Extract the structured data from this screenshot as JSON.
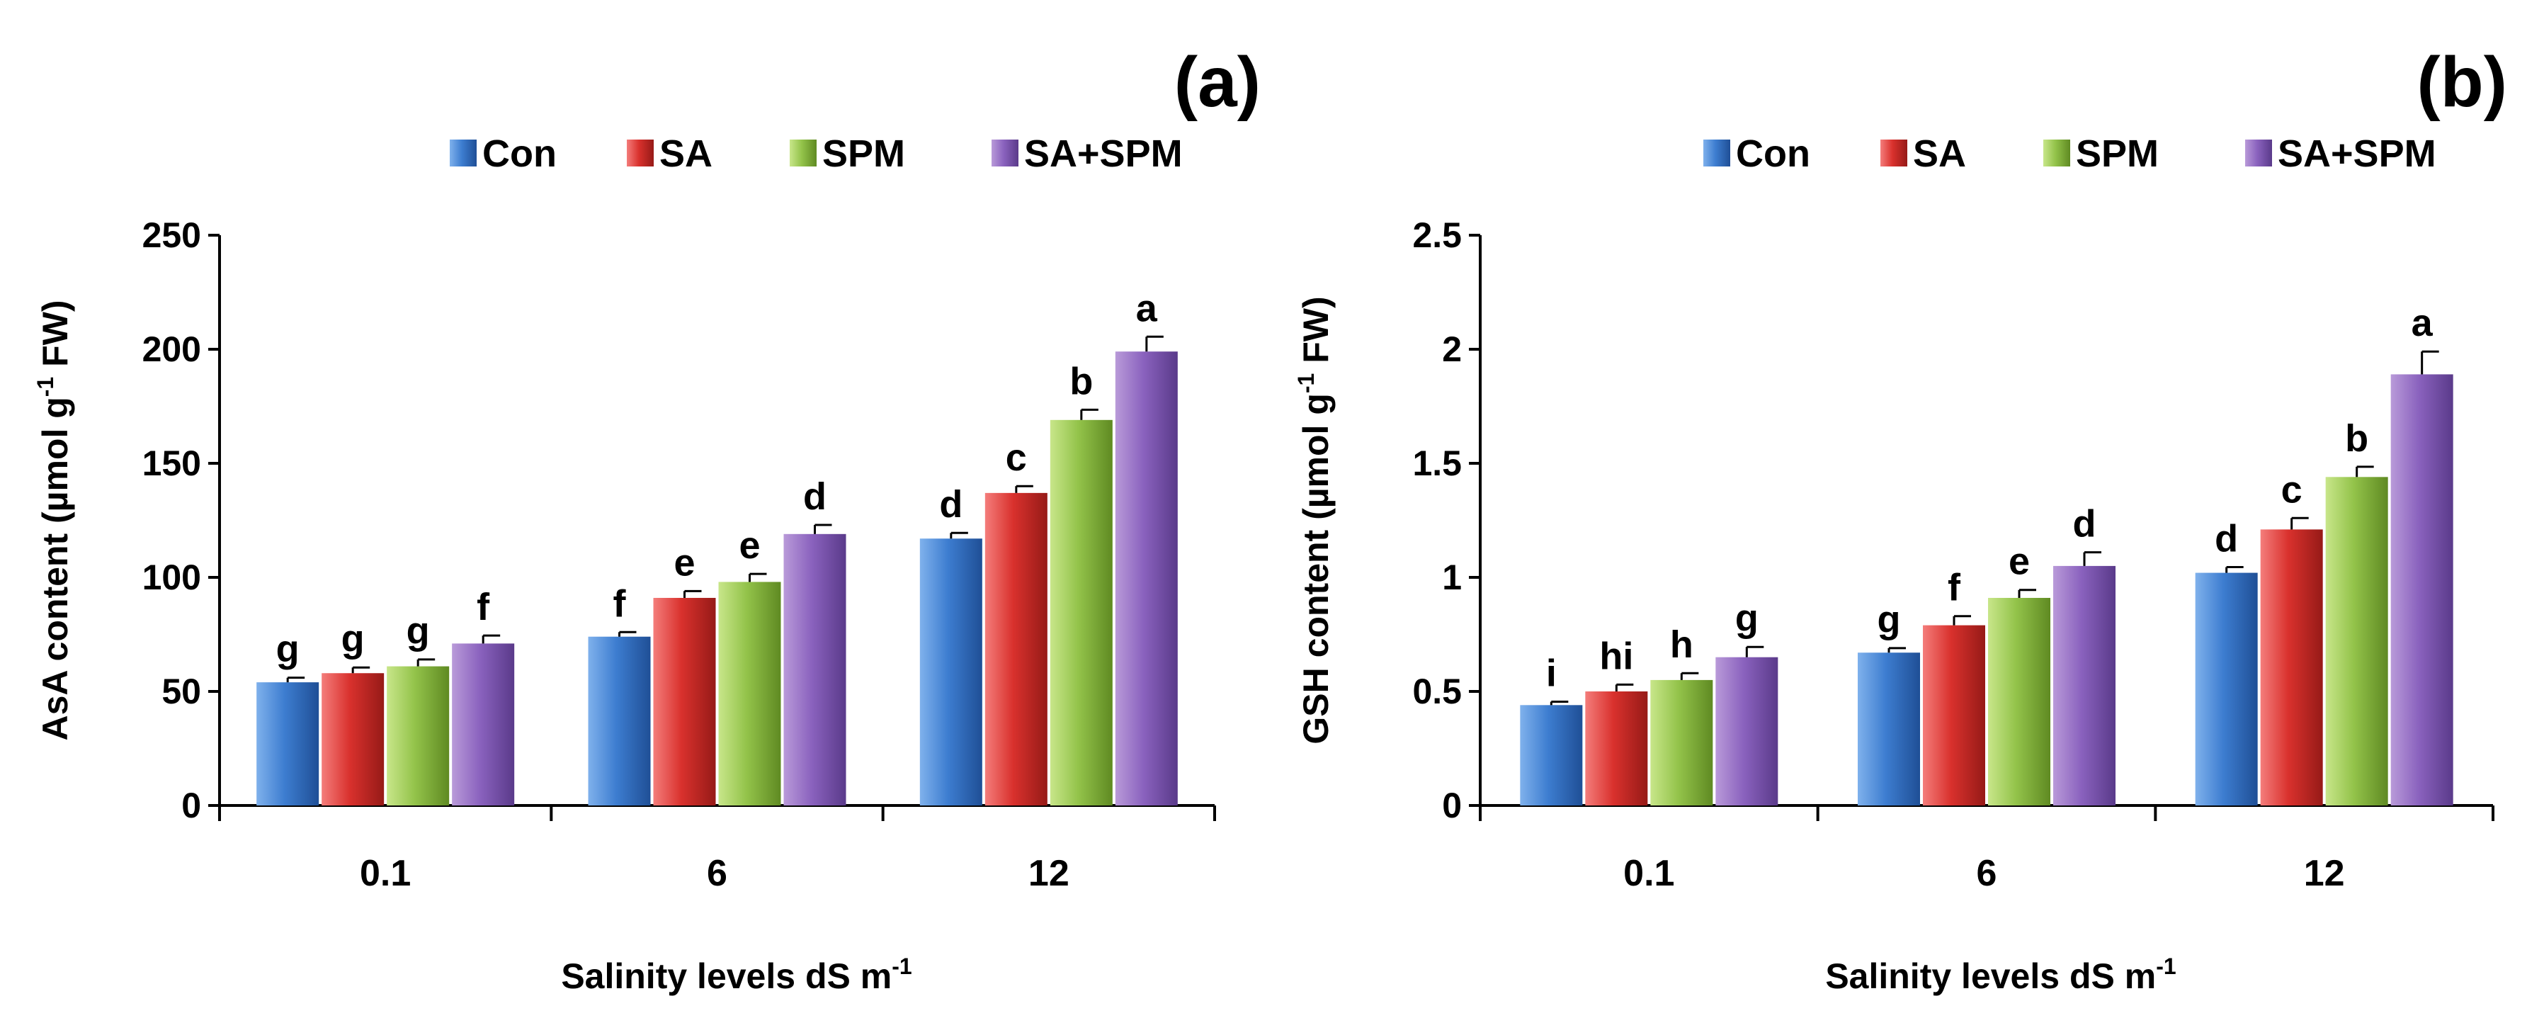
{
  "series_colors": {
    "Con": [
      "#7fb1ec",
      "#3d7dd0",
      "#1f4f96"
    ],
    "SA": [
      "#f47d7b",
      "#d9312d",
      "#961a17"
    ],
    "SPM": [
      "#c8e68a",
      "#93c34a",
      "#5f8a22"
    ],
    "SA+SPM": [
      "#b99ad9",
      "#8a62be",
      "#5a3a8a"
    ]
  },
  "chart_data": [
    {
      "type": "bar",
      "panel_label": "(a)",
      "categories": [
        "0.1",
        "6",
        "12"
      ],
      "xlabel": "Salinity levels dS m",
      "xlabel_sup": "-1",
      "ylabel": "AsA content (µmol g",
      "ylabel_sup": "-1",
      "ylabel_end": " FW)",
      "ylim": [
        0,
        250
      ],
      "yticks": [
        "0",
        "50",
        "100",
        "150",
        "200",
        "250"
      ],
      "legend": [
        "Con",
        "SA",
        "SPM",
        "SA+SPM"
      ],
      "series": [
        {
          "name": "Con",
          "values": [
            54,
            74,
            117
          ],
          "errors": [
            2,
            2,
            2.5
          ],
          "letters": [
            "g",
            "f",
            "d"
          ]
        },
        {
          "name": "SA",
          "values": [
            58,
            91,
            137
          ],
          "errors": [
            2.5,
            3,
            3
          ],
          "letters": [
            "g",
            "e",
            "c"
          ]
        },
        {
          "name": "SPM",
          "values": [
            61,
            98,
            169
          ],
          "errors": [
            3,
            3.5,
            4.5
          ],
          "letters": [
            "g",
            "e",
            "b"
          ]
        },
        {
          "name": "SA+SPM",
          "values": [
            71,
            119,
            199
          ],
          "errors": [
            3.5,
            4,
            6.5
          ],
          "letters": [
            "f",
            "d",
            "a"
          ]
        }
      ]
    },
    {
      "type": "bar",
      "panel_label": "(b)",
      "categories": [
        "0.1",
        "6",
        "12"
      ],
      "xlabel": "Salinity levels dS m",
      "xlabel_sup": "-1",
      "ylabel": "GSH content (µmol g",
      "ylabel_sup": "-1",
      "ylabel_end": " FW)",
      "ylim": [
        0,
        2.5
      ],
      "yticks": [
        "0",
        "0.5",
        "1",
        "1.5",
        "2",
        "2.5"
      ],
      "legend": [
        "Con",
        "SA",
        "SPM",
        "SA+SPM"
      ],
      "series": [
        {
          "name": "Con",
          "values": [
            0.44,
            0.67,
            1.02
          ],
          "errors": [
            0.015,
            0.02,
            0.025
          ],
          "letters": [
            "i",
            "g",
            "d"
          ]
        },
        {
          "name": "SA",
          "values": [
            0.5,
            0.79,
            1.21
          ],
          "errors": [
            0.03,
            0.04,
            0.05
          ],
          "letters": [
            "hi",
            "f",
            "c"
          ]
        },
        {
          "name": "SPM",
          "values": [
            0.55,
            0.91,
            1.44
          ],
          "errors": [
            0.03,
            0.035,
            0.045
          ],
          "letters": [
            "h",
            "e",
            "b"
          ]
        },
        {
          "name": "SA+SPM",
          "values": [
            0.65,
            1.05,
            1.89
          ],
          "errors": [
            0.045,
            0.06,
            0.1
          ],
          "letters": [
            "g",
            "d",
            "a"
          ]
        }
      ]
    }
  ]
}
